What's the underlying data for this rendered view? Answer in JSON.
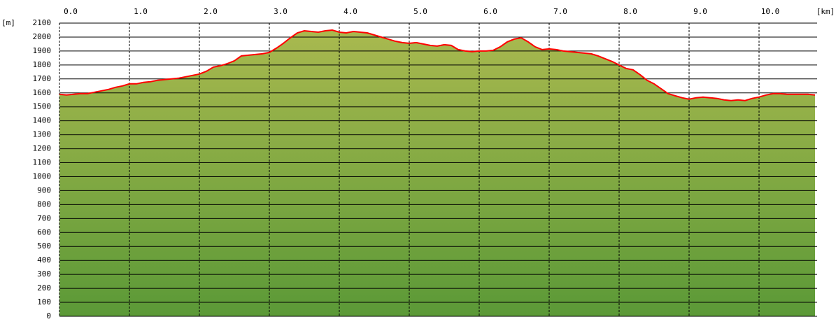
{
  "chart_data": {
    "type": "area",
    "x_label": "[km]",
    "y_label": "[m]",
    "x": [
      0,
      0.1,
      0.2,
      0.3,
      0.4,
      0.5,
      0.6,
      0.7,
      0.8,
      0.9,
      1.0,
      1.1,
      1.2,
      1.3,
      1.4,
      1.5,
      1.6,
      1.7,
      1.8,
      1.9,
      2.0,
      2.1,
      2.2,
      2.3,
      2.4,
      2.5,
      2.6,
      2.7,
      2.8,
      2.9,
      3.0,
      3.1,
      3.2,
      3.3,
      3.4,
      3.5,
      3.6,
      3.7,
      3.8,
      3.9,
      4.0,
      4.1,
      4.2,
      4.3,
      4.4,
      4.5,
      4.6,
      4.7,
      4.8,
      4.9,
      5.0,
      5.1,
      5.2,
      5.3,
      5.4,
      5.5,
      5.6,
      5.7,
      5.8,
      5.9,
      6.0,
      6.1,
      6.2,
      6.3,
      6.4,
      6.5,
      6.6,
      6.7,
      6.8,
      6.9,
      7.0,
      7.1,
      7.2,
      7.3,
      7.4,
      7.5,
      7.6,
      7.7,
      7.8,
      7.9,
      8.0,
      8.1,
      8.2,
      8.3,
      8.4,
      8.5,
      8.6,
      8.7,
      8.8,
      8.9,
      9.0,
      9.1,
      9.2,
      9.3,
      9.4,
      9.5,
      9.6,
      9.7,
      9.8,
      9.9,
      10.0,
      10.1,
      10.2,
      10.3,
      10.4,
      10.5,
      10.6,
      10.7,
      10.8
    ],
    "values": [
      1590,
      1585,
      1590,
      1595,
      1595,
      1605,
      1615,
      1625,
      1640,
      1650,
      1665,
      1665,
      1675,
      1680,
      1690,
      1695,
      1700,
      1705,
      1715,
      1725,
      1735,
      1755,
      1785,
      1795,
      1810,
      1830,
      1865,
      1870,
      1875,
      1880,
      1890,
      1920,
      1955,
      1995,
      2030,
      2045,
      2040,
      2035,
      2045,
      2050,
      2035,
      2030,
      2040,
      2035,
      2030,
      2015,
      2000,
      1985,
      1970,
      1960,
      1955,
      1960,
      1950,
      1940,
      1935,
      1945,
      1940,
      1910,
      1900,
      1895,
      1900,
      1900,
      1905,
      1930,
      1965,
      1985,
      1995,
      1965,
      1930,
      1910,
      1915,
      1910,
      1900,
      1895,
      1890,
      1885,
      1880,
      1865,
      1845,
      1825,
      1800,
      1775,
      1765,
      1730,
      1690,
      1665,
      1630,
      1595,
      1580,
      1565,
      1555,
      1565,
      1570,
      1565,
      1560,
      1550,
      1545,
      1550,
      1545,
      1560,
      1570,
      1585,
      1595,
      1595,
      1590,
      1590,
      1590,
      1590,
      1585
    ],
    "line_color": "#ff0000",
    "area_colors": [
      "#a9b94f",
      "#5b9937"
    ],
    "xlim": [
      0,
      10.83
    ],
    "ylim": [
      0,
      2100
    ],
    "xticks": [
      {
        "value": 0,
        "label": "0.0"
      },
      {
        "value": 1,
        "label": "1.0"
      },
      {
        "value": 2,
        "label": "2.0"
      },
      {
        "value": 3,
        "label": "3.0"
      },
      {
        "value": 4,
        "label": "4.0"
      },
      {
        "value": 5,
        "label": "5.0"
      },
      {
        "value": 6,
        "label": "6.0"
      },
      {
        "value": 7,
        "label": "7.0"
      },
      {
        "value": 8,
        "label": "8.0"
      },
      {
        "value": 9,
        "label": "9.0"
      },
      {
        "value": 10,
        "label": "10.0"
      }
    ],
    "yticks": [
      0,
      100,
      200,
      300,
      400,
      500,
      600,
      700,
      800,
      900,
      1000,
      1100,
      1200,
      1300,
      1400,
      1500,
      1600,
      1700,
      1800,
      1900,
      2000,
      2100
    ],
    "grid": true
  }
}
